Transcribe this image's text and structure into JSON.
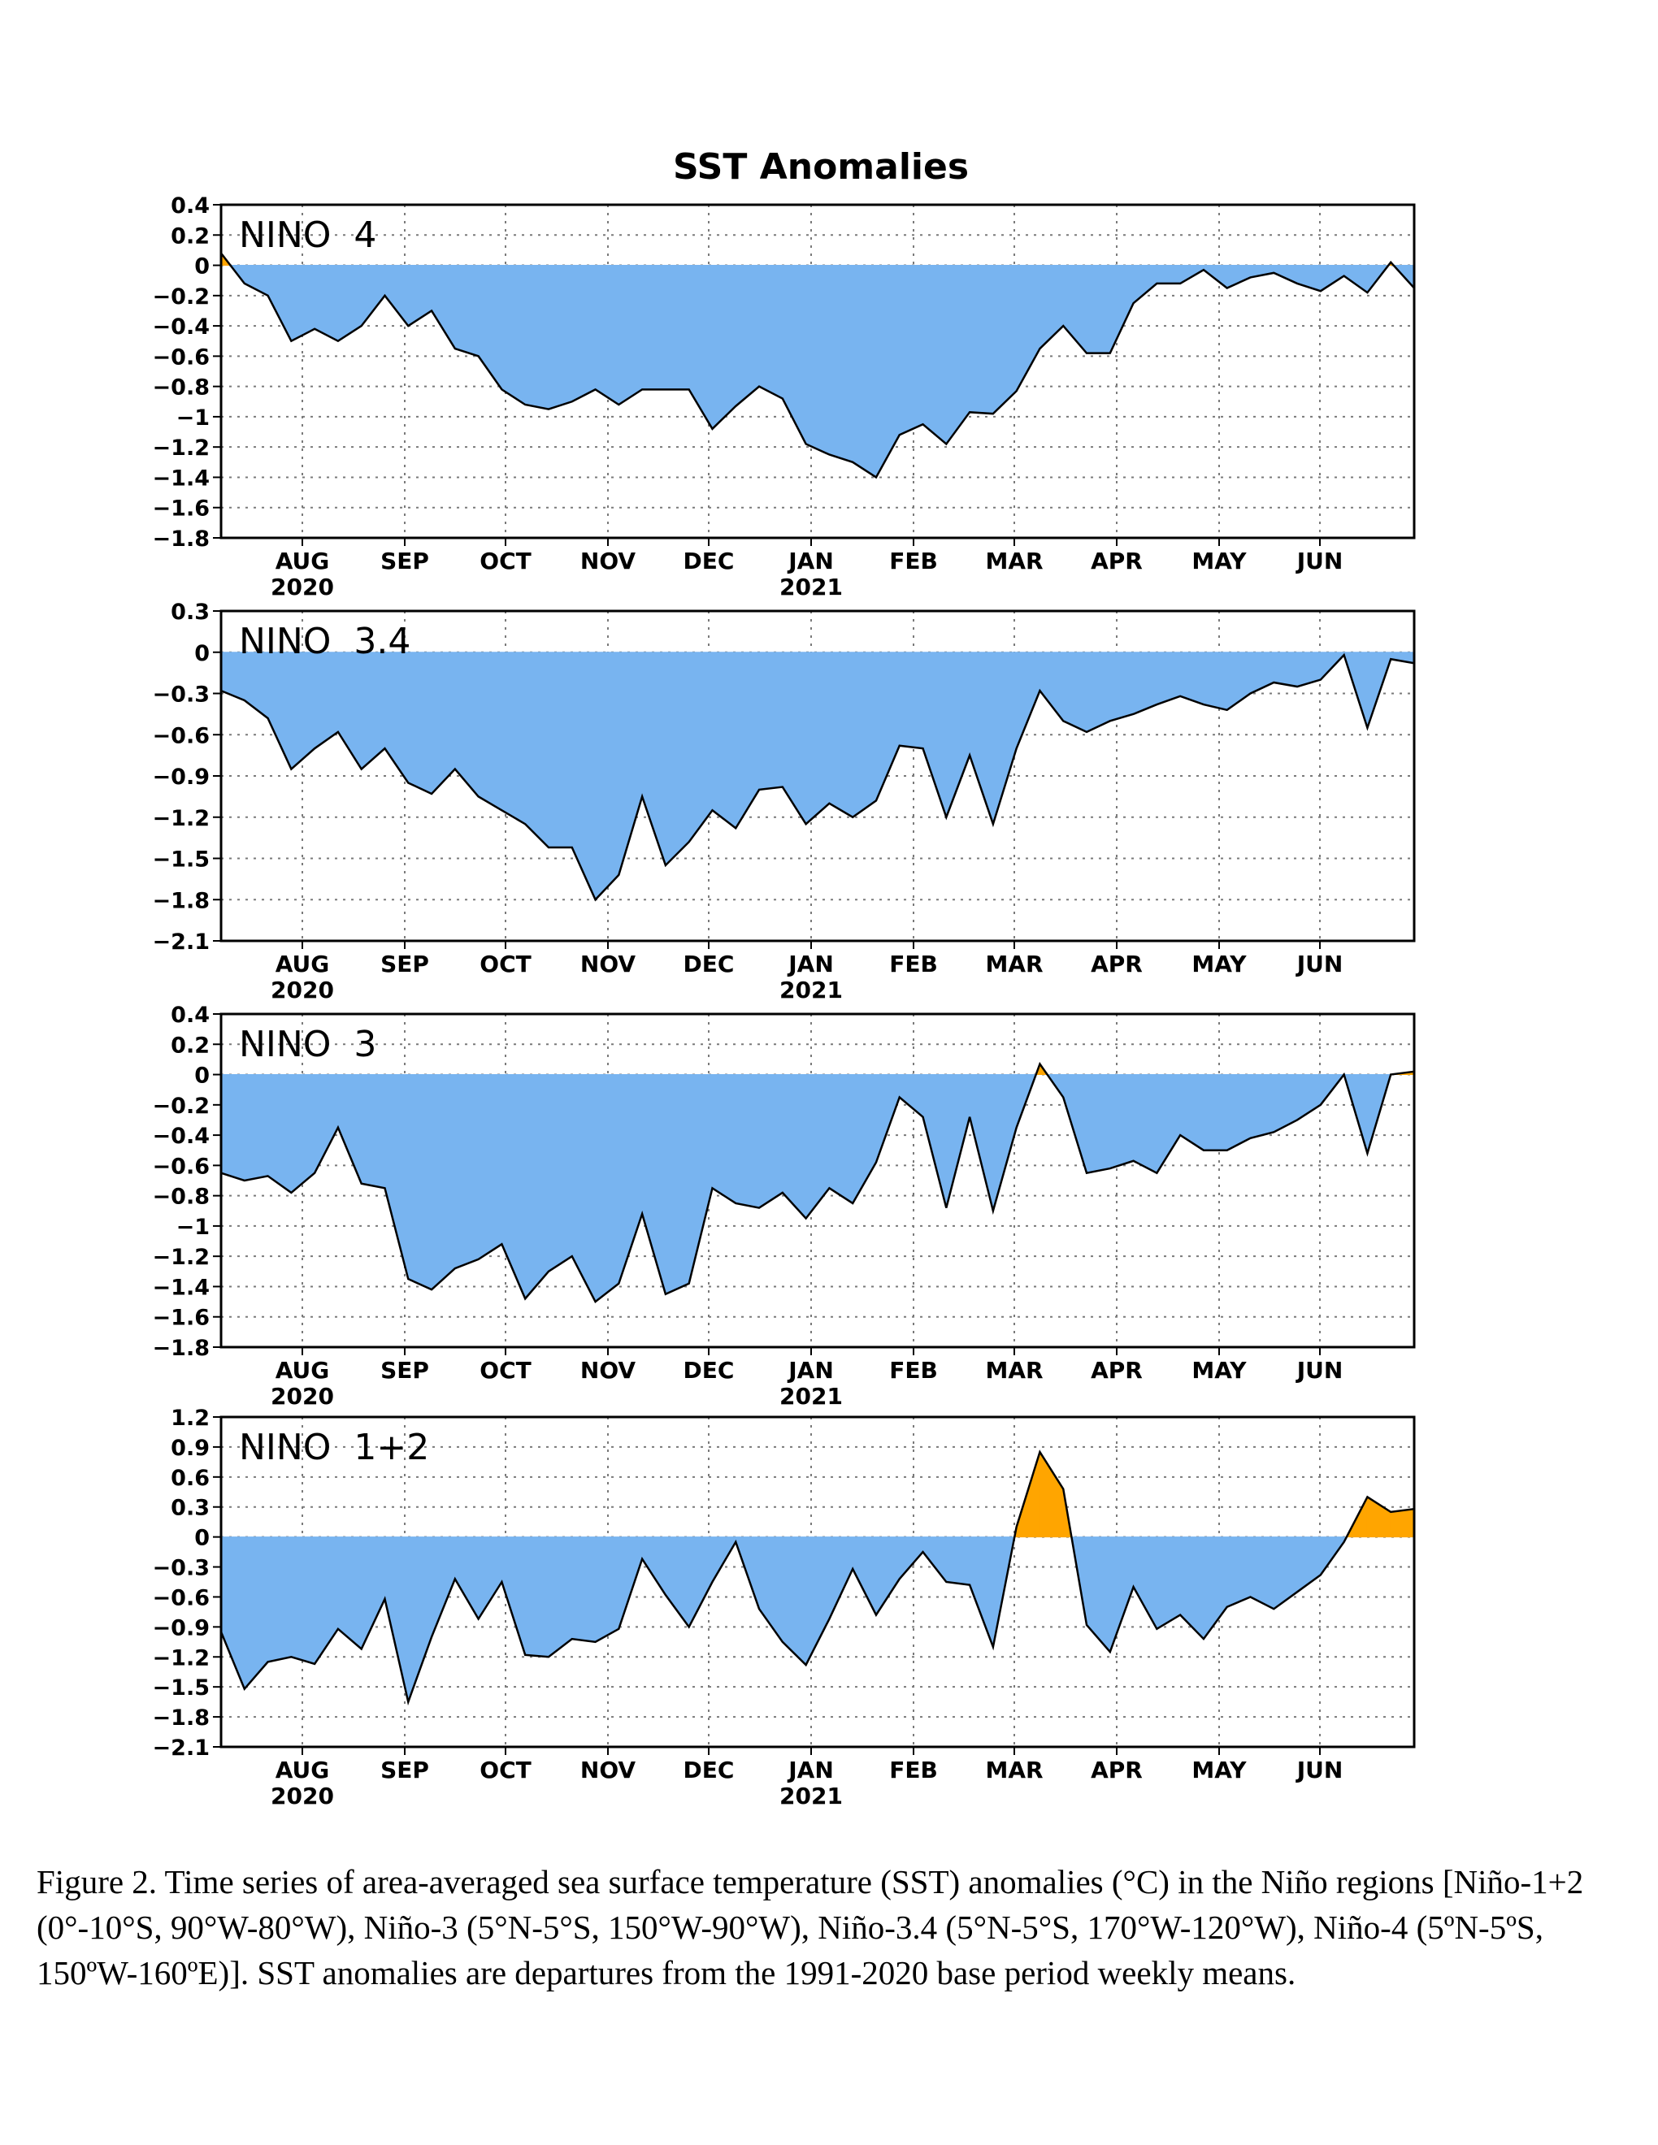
{
  "figure_title": "SST Anomalies",
  "caption": "Figure 2. Time series of area-averaged sea surface temperature (SST) anomalies (°C) in the Niño regions [Niño-1+2 (0°-10°S, 90°W-80°W), Niño-3 (5°N-5°S, 150°W-90°W), Niño-3.4 (5°N-5°S, 170°W-120°W), Niño-4 (5ºN-5ºS, 150ºW-160ºE)]. SST anomalies are departures from the 1991-2020 base period weekly means.",
  "colors": {
    "negative_fill": "#78b4f0",
    "positive_fill": "#ffa500",
    "line": "#000000",
    "grid": "#7a7a7a"
  },
  "x_axis": {
    "months": [
      "AUG",
      "SEP",
      "OCT",
      "NOV",
      "DEC",
      "JAN",
      "FEB",
      "MAR",
      "APR",
      "MAY",
      "JUN"
    ],
    "years": [
      {
        "label": "2020",
        "under": "AUG"
      },
      {
        "label": "2021",
        "under": "JAN"
      }
    ]
  },
  "chart_data": [
    {
      "type": "area",
      "region_label": "NINO  4",
      "ylim": [
        -1.8,
        0.4
      ],
      "yticks": [
        "0.4",
        "0.2",
        "0",
        "−0.2",
        "−0.4",
        "−0.6",
        "−0.8",
        "−1",
        "−1.2",
        "−1.4",
        "−1.6",
        "−1.8"
      ],
      "ytick_values": [
        0.4,
        0.2,
        0,
        -0.2,
        -0.4,
        -0.6,
        -0.8,
        -1.0,
        -1.2,
        -1.4,
        -1.6,
        -1.8
      ],
      "grid": true,
      "values": [
        0.08,
        -0.12,
        -0.2,
        -0.5,
        -0.42,
        -0.5,
        -0.4,
        -0.2,
        -0.4,
        -0.3,
        -0.55,
        -0.6,
        -0.82,
        -0.92,
        -0.95,
        -0.9,
        -0.82,
        -0.92,
        -0.82,
        -0.82,
        -0.82,
        -1.08,
        -0.93,
        -0.8,
        -0.88,
        -1.18,
        -1.25,
        -1.3,
        -1.4,
        -1.12,
        -1.05,
        -1.18,
        -0.97,
        -0.98,
        -0.83,
        -0.55,
        -0.4,
        -0.58,
        -0.58,
        -0.25,
        -0.12,
        -0.12,
        -0.03,
        -0.15,
        -0.08,
        -0.05,
        -0.12,
        -0.17,
        -0.07,
        -0.18,
        0.02,
        -0.15
      ]
    },
    {
      "type": "area",
      "region_label": "NINO  3.4",
      "ylim": [
        -2.1,
        0.3
      ],
      "yticks": [
        "0.3",
        "0",
        "−0.3",
        "−0.6",
        "−0.9",
        "−1.2",
        "−1.5",
        "−1.8",
        "−2.1"
      ],
      "ytick_values": [
        0.3,
        0,
        -0.3,
        -0.6,
        -0.9,
        -1.2,
        -1.5,
        -1.8,
        -2.1
      ],
      "grid": true,
      "values": [
        -0.28,
        -0.35,
        -0.48,
        -0.85,
        -0.7,
        -0.58,
        -0.85,
        -0.7,
        -0.95,
        -1.03,
        -0.85,
        -1.05,
        -1.15,
        -1.25,
        -1.42,
        -1.42,
        -1.8,
        -1.62,
        -1.05,
        -1.55,
        -1.38,
        -1.15,
        -1.28,
        -1.0,
        -0.98,
        -1.25,
        -1.1,
        -1.2,
        -1.08,
        -0.68,
        -0.7,
        -1.2,
        -0.75,
        -1.25,
        -0.7,
        -0.28,
        -0.5,
        -0.58,
        -0.5,
        -0.45,
        -0.38,
        -0.32,
        -0.38,
        -0.42,
        -0.3,
        -0.22,
        -0.25,
        -0.2,
        -0.02,
        -0.55,
        -0.05,
        -0.08
      ]
    },
    {
      "type": "area",
      "region_label": "NINO  3",
      "ylim": [
        -1.8,
        0.4
      ],
      "yticks": [
        "0.4",
        "0.2",
        "0",
        "−0.2",
        "−0.4",
        "−0.6",
        "−0.8",
        "−1",
        "−1.2",
        "−1.4",
        "−1.6",
        "−1.8"
      ],
      "ytick_values": [
        0.4,
        0.2,
        0,
        -0.2,
        -0.4,
        -0.6,
        -0.8,
        -1.0,
        -1.2,
        -1.4,
        -1.6,
        -1.8
      ],
      "grid": true,
      "values": [
        -0.65,
        -0.7,
        -0.67,
        -0.78,
        -0.65,
        -0.35,
        -0.72,
        -0.75,
        -1.35,
        -1.42,
        -1.28,
        -1.22,
        -1.12,
        -1.48,
        -1.3,
        -1.2,
        -1.5,
        -1.38,
        -0.92,
        -1.45,
        -1.38,
        -0.75,
        -0.85,
        -0.88,
        -0.78,
        -0.95,
        -0.75,
        -0.85,
        -0.58,
        -0.15,
        -0.28,
        -0.88,
        -0.28,
        -0.9,
        -0.35,
        0.07,
        -0.15,
        -0.65,
        -0.62,
        -0.57,
        -0.65,
        -0.4,
        -0.5,
        -0.5,
        -0.42,
        -0.38,
        -0.3,
        -0.2,
        0.0,
        -0.52,
        0.0,
        0.02
      ]
    },
    {
      "type": "area",
      "region_label": "NINO  1+2",
      "ylim": [
        -2.1,
        1.2
      ],
      "yticks": [
        "1.2",
        "0.9",
        "0.6",
        "0.3",
        "0",
        "−0.3",
        "−0.6",
        "−0.9",
        "−1.2",
        "−1.5",
        "−1.8",
        "−2.1"
      ],
      "ytick_values": [
        1.2,
        0.9,
        0.6,
        0.3,
        0,
        -0.3,
        -0.6,
        -0.9,
        -1.2,
        -1.5,
        -1.8,
        -2.1
      ],
      "grid": true,
      "values": [
        -0.95,
        -1.52,
        -1.25,
        -1.2,
        -1.27,
        -0.92,
        -1.12,
        -0.62,
        -1.65,
        -1.0,
        -0.42,
        -0.82,
        -0.45,
        -1.18,
        -1.2,
        -1.02,
        -1.05,
        -0.92,
        -0.22,
        -0.58,
        -0.9,
        -0.45,
        -0.05,
        -0.72,
        -1.05,
        -1.28,
        -0.82,
        -0.32,
        -0.78,
        -0.42,
        -0.15,
        -0.45,
        -0.48,
        -1.1,
        0.1,
        0.85,
        0.48,
        -0.88,
        -1.15,
        -0.5,
        -0.92,
        -0.78,
        -1.02,
        -0.7,
        -0.6,
        -0.72,
        -0.55,
        -0.38,
        -0.05,
        0.4,
        0.25,
        0.28
      ]
    }
  ]
}
